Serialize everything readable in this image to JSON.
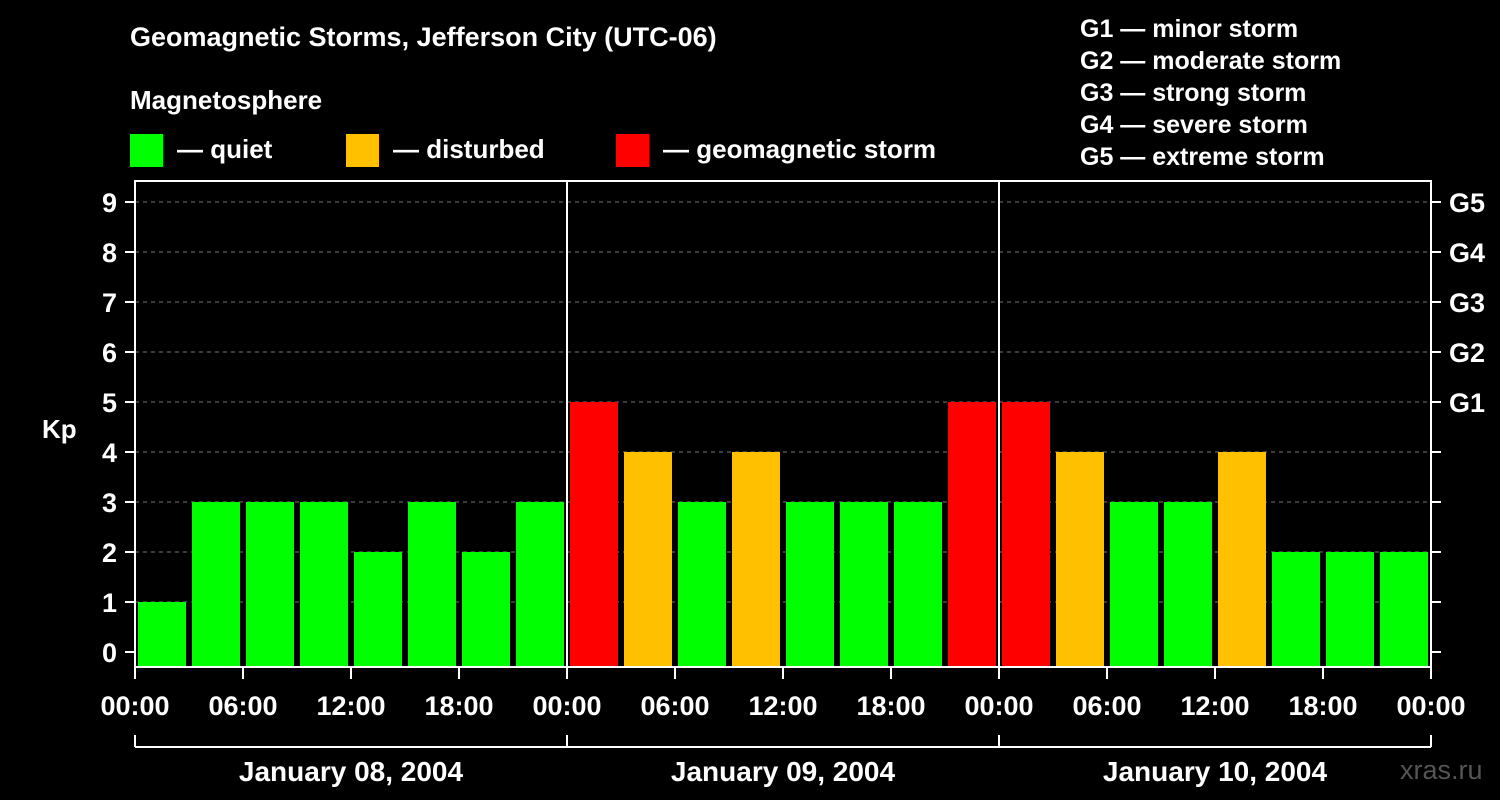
{
  "chart_data": {
    "type": "bar",
    "title": "Geomagnetic Storms, Jefferson City (UTC-06)",
    "subtitle": "Magnetosphere",
    "ylabel": "Kp",
    "ylim": [
      0,
      9
    ],
    "yticks": [
      "0",
      "1",
      "2",
      "3",
      "4",
      "5",
      "6",
      "7",
      "8",
      "9"
    ],
    "right_axis": [
      {
        "kp": 5,
        "label": "G1"
      },
      {
        "kp": 6,
        "label": "G2"
      },
      {
        "kp": 7,
        "label": "G3"
      },
      {
        "kp": 8,
        "label": "G4"
      },
      {
        "kp": 9,
        "label": "G5"
      }
    ],
    "grid": "horizontal dashed",
    "legend": [
      {
        "label": "— quiet",
        "color": "#00ff00"
      },
      {
        "label": "— disturbed",
        "color": "#ffc000"
      },
      {
        "label": "— geomagnetic storm",
        "color": "#ff0000"
      }
    ],
    "storm_scale": [
      "G1 — minor storm",
      "G2 — moderate storm",
      "G3 — strong storm",
      "G4 — severe storm",
      "G5 — extreme storm"
    ],
    "x_tick_labels": [
      "00:00",
      "06:00",
      "12:00",
      "18:00",
      "00:00",
      "06:00",
      "12:00",
      "18:00",
      "00:00",
      "06:00",
      "12:00",
      "18:00",
      "00:00"
    ],
    "days": [
      "January 08, 2004",
      "January 09, 2004",
      "January 10, 2004"
    ],
    "values": [
      1,
      3,
      3,
      3,
      2,
      3,
      2,
      3,
      5,
      4,
      3,
      4,
      3,
      3,
      3,
      5,
      5,
      4,
      3,
      3,
      4,
      2,
      2,
      2
    ],
    "colors": {
      "quiet": "#00ff00",
      "disturbed": "#ffc000",
      "storm": "#ff0000"
    }
  },
  "watermark": "xras.ru"
}
